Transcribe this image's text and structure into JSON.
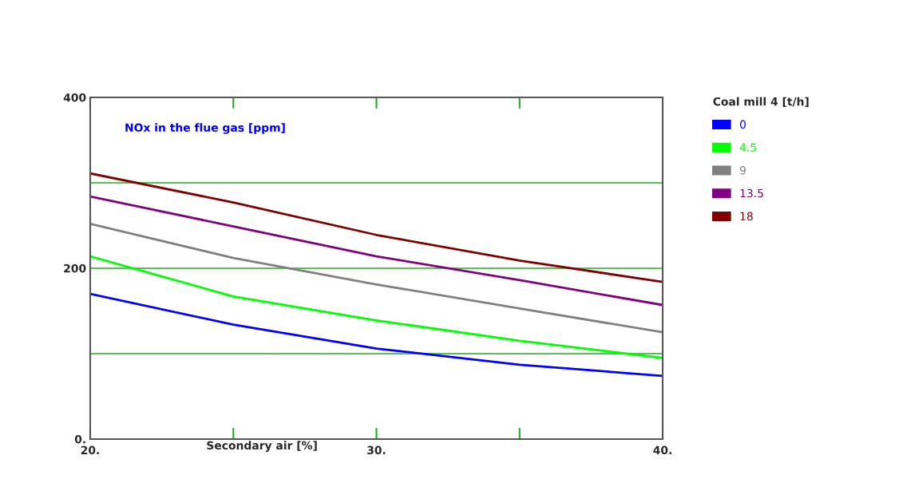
{
  "chart_data": {
    "type": "line",
    "x": [
      20,
      25,
      30,
      35,
      40
    ],
    "xlabel": "Secondary air [%]",
    "legend_title": "Coal mill 4 [t/h]",
    "annotations": [
      "NOx in the flue gas [ppm]"
    ],
    "series": [
      {
        "name": "0",
        "color": "#0000ff",
        "values": [
          170,
          134,
          106,
          87,
          74
        ]
      },
      {
        "name": "4.5",
        "color": "#00ff00",
        "values": [
          214,
          167,
          139,
          115,
          95
        ]
      },
      {
        "name": "9",
        "color": "#808080",
        "values": [
          252,
          212,
          181,
          153,
          125
        ]
      },
      {
        "name": "13.5",
        "color": "#800080",
        "values": [
          284,
          249,
          214,
          186,
          157
        ]
      },
      {
        "name": "18",
        "color": "#800000",
        "values": [
          311,
          277,
          239,
          209,
          184
        ]
      }
    ],
    "xlim": [
      20,
      40
    ],
    "xticks": [
      {
        "value": 20,
        "label": "20."
      },
      {
        "value": 25,
        "label": null
      },
      {
        "value": 30,
        "label": "30."
      },
      {
        "value": 35,
        "label": null
      },
      {
        "value": 40,
        "label": "40."
      }
    ],
    "ylim": [
      0,
      400
    ],
    "yticks": [
      {
        "value": 0,
        "label": "0."
      },
      {
        "value": 100,
        "label": null
      },
      {
        "value": 200,
        "label": "200"
      },
      {
        "value": 300,
        "label": null
      },
      {
        "value": 400,
        "label": "400"
      }
    ],
    "grid": "y",
    "legend": "right",
    "line_style": "solid",
    "marker": "none"
  }
}
